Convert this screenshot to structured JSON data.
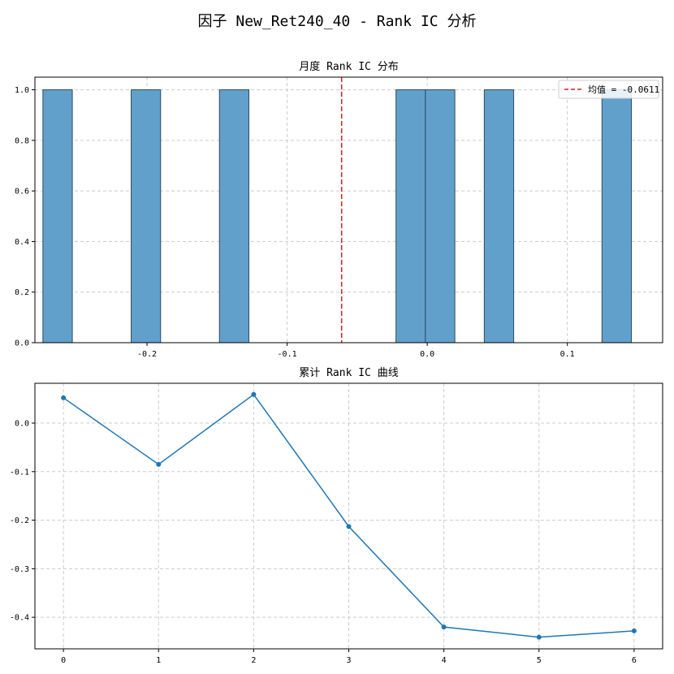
{
  "figure": {
    "title": "因子 New_Ret240_40 - Rank IC 分析"
  },
  "chart_data": [
    {
      "type": "bar",
      "title": "月度 Rank IC 分布",
      "xlabel": "",
      "ylabel": "",
      "xlim": [
        -0.28,
        0.168
      ],
      "ylim": [
        0,
        1.05
      ],
      "xticks": [
        -0.2,
        -0.1,
        0.0,
        0.1
      ],
      "xtick_labels": [
        "-0.2",
        "-0.1",
        "0.0",
        "0.1"
      ],
      "yticks": [
        0.0,
        0.2,
        0.4,
        0.6,
        0.8,
        1.0
      ],
      "ytick_labels": [
        "0.0",
        "0.2",
        "0.4",
        "0.6",
        "0.8",
        "1.0"
      ],
      "bin_width": 0.021,
      "bins": [
        {
          "left": -0.2743,
          "count": 1
        },
        {
          "left": -0.2113,
          "count": 1
        },
        {
          "left": -0.1483,
          "count": 1
        },
        {
          "left": -0.0223,
          "count": 1
        },
        {
          "left": -0.0013,
          "count": 1
        },
        {
          "left": 0.0407,
          "count": 1
        },
        {
          "left": 0.1247,
          "count": 1
        }
      ],
      "mean_line": {
        "value": -0.0611,
        "label": "均值 = -0.0611",
        "color": "#e31a1c"
      },
      "bar_color": "#62a0cc",
      "legend": "top-right",
      "grid": true
    },
    {
      "type": "line",
      "title": "累计 Rank IC 曲线",
      "xlabel": "",
      "ylabel": "",
      "x": [
        0,
        1,
        2,
        3,
        4,
        5,
        6
      ],
      "y": [
        0.052,
        -0.085,
        0.059,
        -0.213,
        -0.42,
        -0.441,
        -0.428
      ],
      "xlim": [
        -0.3,
        6.3
      ],
      "ylim": [
        -0.465,
        0.082
      ],
      "xticks": [
        0,
        1,
        2,
        3,
        4,
        5,
        6
      ],
      "xtick_labels": [
        "0",
        "1",
        "2",
        "3",
        "4",
        "5",
        "6"
      ],
      "yticks": [
        0.0,
        -0.1,
        -0.2,
        -0.3,
        -0.4
      ],
      "ytick_labels": [
        "0.0",
        "-0.1",
        "-0.2",
        "-0.3",
        "-0.4"
      ],
      "line_color": "#1f77b4",
      "marker": "circle",
      "grid": true
    }
  ]
}
